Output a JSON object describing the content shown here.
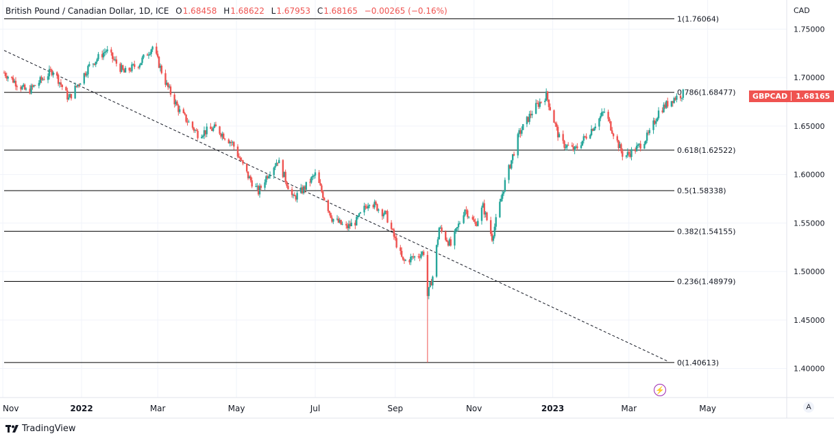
{
  "header": {
    "symbol": "British Pound / Canadian Dollar, 1D, ICE",
    "open_label": "O",
    "open": "1.68458",
    "high_label": "H",
    "high": "1.68622",
    "low_label": "L",
    "low": "1.67953",
    "close_label": "C",
    "close": "1.68165",
    "change": "−0.00265 (−0.16%)"
  },
  "price_tag": {
    "symbol": "GBPCAD",
    "value": "1.68165"
  },
  "branding": "TradingView",
  "auto_button": "A",
  "colors": {
    "up": "#26a69a",
    "down": "#ef5350",
    "fib_line": "#000000",
    "grid": "#f0f3fa"
  },
  "chart_data": {
    "type": "candlestick",
    "currency": "CAD",
    "ylim": [
      1.37,
      1.78
    ],
    "y_ticks": [
      {
        "value": 1.75,
        "label": "1.75000"
      },
      {
        "value": 1.7,
        "label": "1.70000"
      },
      {
        "value": 1.65,
        "label": "1.65000"
      },
      {
        "value": 1.6,
        "label": "1.60000"
      },
      {
        "value": 1.55,
        "label": "1.55000"
      },
      {
        "value": 1.5,
        "label": "1.50000"
      },
      {
        "value": 1.45,
        "label": "1.45000"
      },
      {
        "value": 1.4,
        "label": "1.40000"
      }
    ],
    "x_ticks": [
      {
        "date": "2021-11-01",
        "label": "Nov"
      },
      {
        "date": "2022-01-01",
        "label": "2022"
      },
      {
        "date": "2022-03-01",
        "label": "Mar"
      },
      {
        "date": "2022-05-01",
        "label": "May"
      },
      {
        "date": "2022-07-01",
        "label": "Jul"
      },
      {
        "date": "2022-09-01",
        "label": "Sep"
      },
      {
        "date": "2022-11-01",
        "label": "Nov"
      },
      {
        "date": "2023-01-01",
        "label": "2023"
      },
      {
        "date": "2023-03-01",
        "label": "Mar"
      },
      {
        "date": "2023-05-01",
        "label": "May"
      }
    ],
    "x_range": [
      "2021-11-02",
      "2023-06-27"
    ],
    "fib_levels": [
      {
        "value": 1.76064,
        "label": "1(1.76064)"
      },
      {
        "value": 1.68477,
        "label": "0.786(1.68477)"
      },
      {
        "value": 1.62522,
        "label": "0.618(1.62522)"
      },
      {
        "value": 1.58338,
        "label": "0.5(1.58338)"
      },
      {
        "value": 1.54155,
        "label": "0.382(1.54155)"
      },
      {
        "value": 1.48979,
        "label": "0.236(1.48979)"
      },
      {
        "value": 1.40613,
        "label": "0(1.40613)"
      }
    ],
    "trendline": {
      "start": {
        "date": "2021-11-02",
        "value": 1.728
      },
      "end": {
        "date": "2023-03-31",
        "value": 1.4075
      }
    },
    "anchors": [
      {
        "date": "2021-11-02",
        "value": 1.705
      },
      {
        "date": "2021-11-20",
        "value": 1.685
      },
      {
        "date": "2021-12-10",
        "value": 1.708
      },
      {
        "date": "2021-12-22",
        "value": 1.678
      },
      {
        "date": "2022-01-07",
        "value": 1.712
      },
      {
        "date": "2022-01-20",
        "value": 1.728
      },
      {
        "date": "2022-02-03",
        "value": 1.705
      },
      {
        "date": "2022-02-15",
        "value": 1.715
      },
      {
        "date": "2022-02-25",
        "value": 1.732
      },
      {
        "date": "2022-03-08",
        "value": 1.692
      },
      {
        "date": "2022-03-18",
        "value": 1.665
      },
      {
        "date": "2022-04-01",
        "value": 1.642
      },
      {
        "date": "2022-04-15",
        "value": 1.648
      },
      {
        "date": "2022-04-28",
        "value": 1.632
      },
      {
        "date": "2022-05-10",
        "value": 1.598
      },
      {
        "date": "2022-05-18",
        "value": 1.582
      },
      {
        "date": "2022-05-25",
        "value": 1.6
      },
      {
        "date": "2022-06-02",
        "value": 1.615
      },
      {
        "date": "2022-06-14",
        "value": 1.575
      },
      {
        "date": "2022-06-22",
        "value": 1.585
      },
      {
        "date": "2022-07-01",
        "value": 1.6
      },
      {
        "date": "2022-07-14",
        "value": 1.555
      },
      {
        "date": "2022-07-25",
        "value": 1.545
      },
      {
        "date": "2022-08-02",
        "value": 1.552
      },
      {
        "date": "2022-08-12",
        "value": 1.573
      },
      {
        "date": "2022-08-25",
        "value": 1.558
      },
      {
        "date": "2022-09-07",
        "value": 1.51
      },
      {
        "date": "2022-09-16",
        "value": 1.515
      },
      {
        "date": "2022-09-23",
        "value": 1.52
      },
      {
        "date": "2022-09-26",
        "value": 1.475
      },
      {
        "date": "2022-09-30",
        "value": 1.495
      },
      {
        "date": "2022-10-05",
        "value": 1.545
      },
      {
        "date": "2022-10-14",
        "value": 1.527
      },
      {
        "date": "2022-10-25",
        "value": 1.565
      },
      {
        "date": "2022-11-02",
        "value": 1.548
      },
      {
        "date": "2022-11-08",
        "value": 1.567
      },
      {
        "date": "2022-11-15",
        "value": 1.535
      },
      {
        "date": "2022-11-25",
        "value": 1.592
      },
      {
        "date": "2022-12-06",
        "value": 1.642
      },
      {
        "date": "2022-12-17",
        "value": 1.667
      },
      {
        "date": "2022-12-27",
        "value": 1.682
      },
      {
        "date": "2023-01-07",
        "value": 1.633
      },
      {
        "date": "2023-01-18",
        "value": 1.625
      },
      {
        "date": "2023-01-30",
        "value": 1.645
      },
      {
        "date": "2023-02-10",
        "value": 1.665
      },
      {
        "date": "2023-02-25",
        "value": 1.618
      },
      {
        "date": "2023-03-08",
        "value": 1.628
      },
      {
        "date": "2023-03-17",
        "value": 1.642
      },
      {
        "date": "2023-03-24",
        "value": 1.665
      },
      {
        "date": "2023-04-04",
        "value": 1.678
      },
      {
        "date": "2023-04-12",
        "value": 1.6835
      }
    ]
  }
}
